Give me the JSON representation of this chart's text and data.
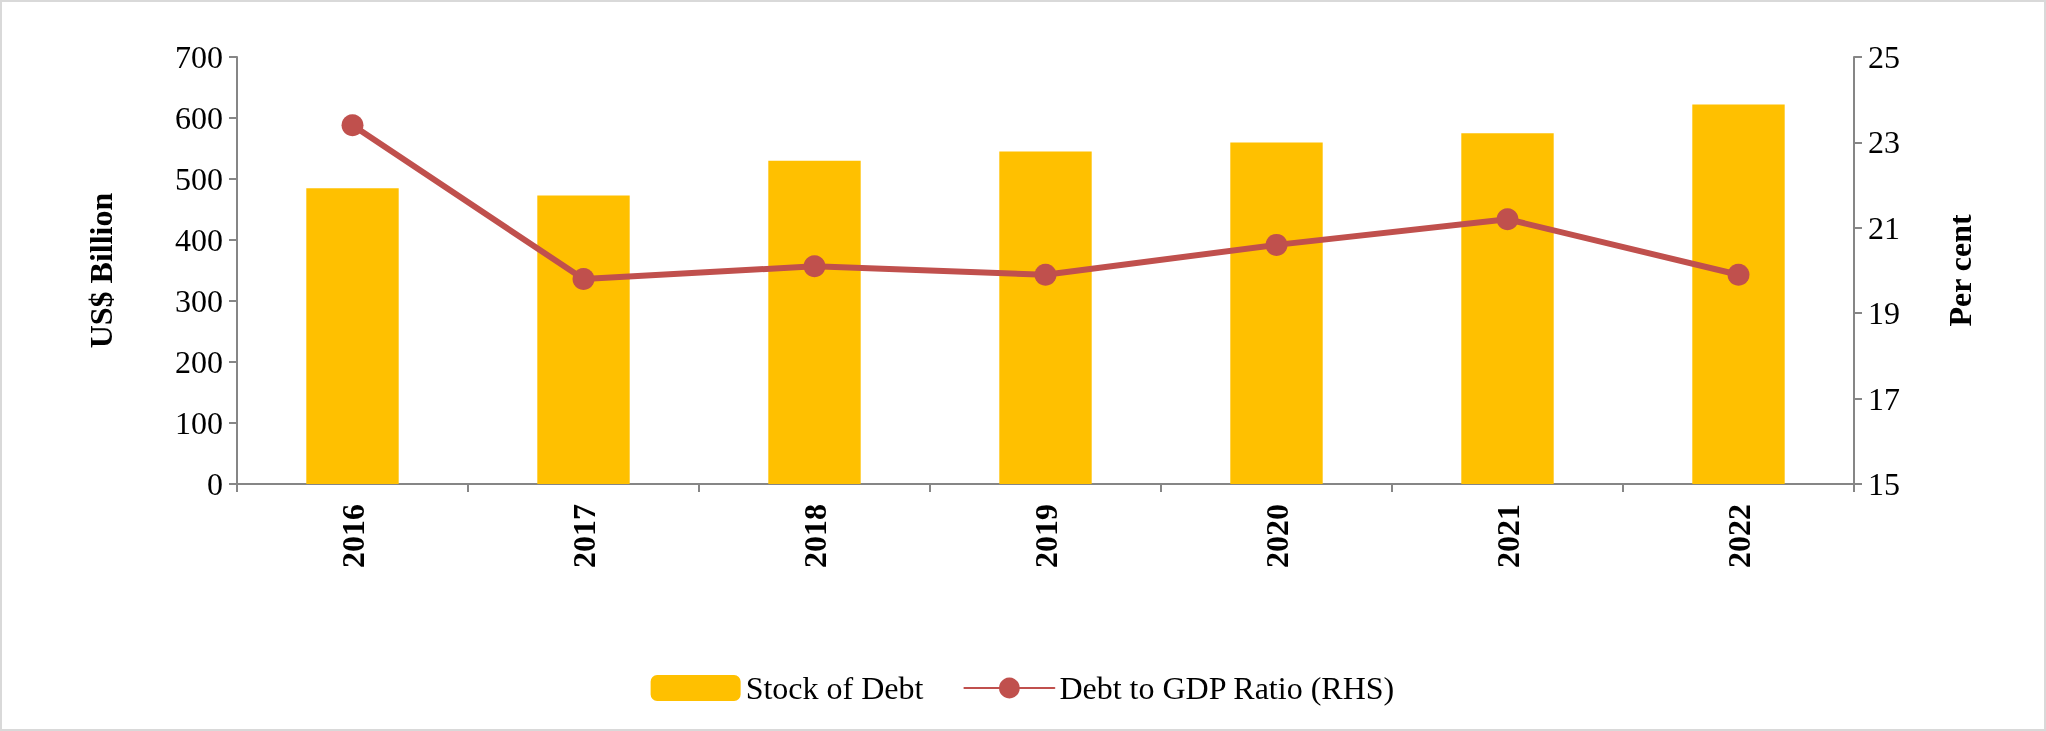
{
  "chart_data": {
    "type": "bar",
    "categories": [
      "2016",
      "2017",
      "2018",
      "2019",
      "2020",
      "2021",
      "2022"
    ],
    "series": [
      {
        "name": "Stock of Debt",
        "color": "#ffc000",
        "values": [
          485,
          473,
          530,
          545,
          560,
          575,
          622
        ]
      },
      {
        "name": "Debt to GDP Ratio (RHS)",
        "type": "line",
        "axis": "y2",
        "color": "#c0504d",
        "values": [
          23.4,
          19.8,
          20.1,
          19.9,
          20.6,
          21.2,
          19.9
        ]
      }
    ],
    "ylabel": "US$ Billion",
    "y2label": "Per cent",
    "ylim": [
      0,
      700
    ],
    "yticks": [
      0,
      100,
      200,
      300,
      400,
      500,
      600,
      700
    ],
    "y2lim": [
      15,
      25
    ],
    "y2ticks": [
      15,
      17,
      19,
      21,
      23,
      25
    ],
    "grid": false,
    "legend": "bottom",
    "marker": "circle",
    "line_style": "solid"
  }
}
